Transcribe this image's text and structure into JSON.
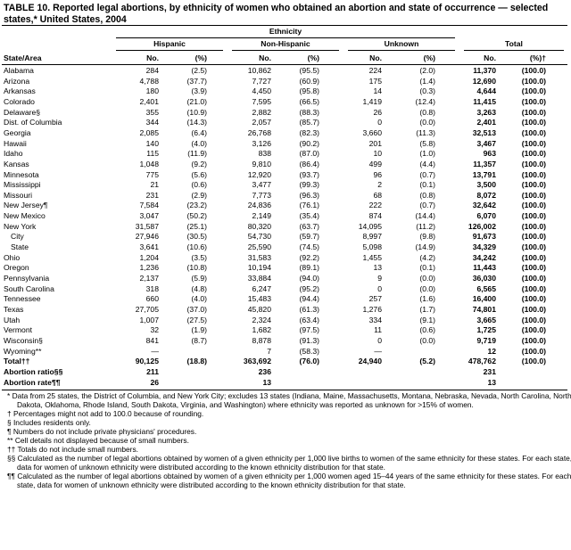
{
  "title": "TABLE 10. Reported legal abortions, by ethnicity of women who obtained an abortion and state of occurrence — selected states,* United States, 2004",
  "table": {
    "group_header": "Ethnicity",
    "column_groups": [
      "Hispanic",
      "Non-Hispanic",
      "Unknown",
      "Total"
    ],
    "columns": [
      "State/Area",
      "No.",
      "(%)",
      "No.",
      "(%)",
      "No.",
      "(%)",
      "No.",
      "(%)†"
    ],
    "rows": [
      [
        "Alabama",
        "284",
        "(2.5)",
        "10,862",
        "(95.5)",
        "224",
        "(2.0)",
        "11,370",
        "(100.0)"
      ],
      [
        "Arizona",
        "4,788",
        "(37.7)",
        "7,727",
        "(60.9)",
        "175",
        "(1.4)",
        "12,690",
        "(100.0)"
      ],
      [
        "Arkansas",
        "180",
        "(3.9)",
        "4,450",
        "(95.8)",
        "14",
        "(0.3)",
        "4,644",
        "(100.0)"
      ],
      [
        "Colorado",
        "2,401",
        "(21.0)",
        "7,595",
        "(66.5)",
        "1,419",
        "(12.4)",
        "11,415",
        "(100.0)"
      ],
      [
        "Delaware§",
        "355",
        "(10.9)",
        "2,882",
        "(88.3)",
        "26",
        "(0.8)",
        "3,263",
        "(100.0)"
      ],
      [
        "Dist. of Columbia",
        "344",
        "(14.3)",
        "2,057",
        "(85.7)",
        "0",
        "(0.0)",
        "2,401",
        "(100.0)"
      ],
      [
        "Georgia",
        "2,085",
        "(6.4)",
        "26,768",
        "(82.3)",
        "3,660",
        "(11.3)",
        "32,513",
        "(100.0)"
      ],
      [
        "Hawaii",
        "140",
        "(4.0)",
        "3,126",
        "(90.2)",
        "201",
        "(5.8)",
        "3,467",
        "(100.0)"
      ],
      [
        "Idaho",
        "115",
        "(11.9)",
        "838",
        "(87.0)",
        "10",
        "(1.0)",
        "963",
        "(100.0)"
      ],
      [
        "Kansas",
        "1,048",
        "(9.2)",
        "9,810",
        "(86.4)",
        "499",
        "(4.4)",
        "11,357",
        "(100.0)"
      ],
      [
        "Minnesota",
        "775",
        "(5.6)",
        "12,920",
        "(93.7)",
        "96",
        "(0.7)",
        "13,791",
        "(100.0)"
      ],
      [
        "Mississippi",
        "21",
        "(0.6)",
        "3,477",
        "(99.3)",
        "2",
        "(0.1)",
        "3,500",
        "(100.0)"
      ],
      [
        "Missouri",
        "231",
        "(2.9)",
        "7,773",
        "(96.3)",
        "68",
        "(0.8)",
        "8,072",
        "(100.0)"
      ],
      [
        "New Jersey¶",
        "7,584",
        "(23.2)",
        "24,836",
        "(76.1)",
        "222",
        "(0.7)",
        "32,642",
        "(100.0)"
      ],
      [
        "New Mexico",
        "3,047",
        "(50.2)",
        "2,149",
        "(35.4)",
        "874",
        "(14.4)",
        "6,070",
        "(100.0)"
      ],
      {
        "cells": [
          "New York",
          "31,587",
          "(25.1)",
          "80,320",
          "(63.7)",
          "14,095",
          "(11.2)",
          "126,002",
          "(100.0)"
        ],
        "subrows": [
          [
            "City",
            "27,946",
            "(30.5)",
            "54,730",
            "(59.7)",
            "8,997",
            "(9.8)",
            "91,673",
            "(100.0)"
          ],
          [
            "State",
            "3,641",
            "(10.6)",
            "25,590",
            "(74.5)",
            "5,098",
            "(14.9)",
            "34,329",
            "(100.0)"
          ]
        ]
      },
      [
        "Ohio",
        "1,204",
        "(3.5)",
        "31,583",
        "(92.2)",
        "1,455",
        "(4.2)",
        "34,242",
        "(100.0)"
      ],
      [
        "Oregon",
        "1,236",
        "(10.8)",
        "10,194",
        "(89.1)",
        "13",
        "(0.1)",
        "11,443",
        "(100.0)"
      ],
      [
        "Pennsylvania",
        "2,137",
        "(5.9)",
        "33,884",
        "(94.0)",
        "9",
        "(0.0)",
        "36,030",
        "(100.0)"
      ],
      [
        "South Carolina",
        "318",
        "(4.8)",
        "6,247",
        "(95.2)",
        "0",
        "(0.0)",
        "6,565",
        "(100.0)"
      ],
      [
        "Tennessee",
        "660",
        "(4.0)",
        "15,483",
        "(94.4)",
        "257",
        "(1.6)",
        "16,400",
        "(100.0)"
      ],
      [
        "Texas",
        "27,705",
        "(37.0)",
        "45,820",
        "(61.3)",
        "1,276",
        "(1.7)",
        "74,801",
        "(100.0)"
      ],
      [
        "Utah",
        "1,007",
        "(27.5)",
        "2,324",
        "(63.4)",
        "334",
        "(9.1)",
        "3,665",
        "(100.0)"
      ],
      [
        "Vermont",
        "32",
        "(1.9)",
        "1,682",
        "(97.5)",
        "11",
        "(0.6)",
        "1,725",
        "(100.0)"
      ],
      [
        "Wisconsin§",
        "841",
        "(8.7)",
        "8,878",
        "(91.3)",
        "0",
        "(0.0)",
        "9,719",
        "(100.0)"
      ],
      [
        "Wyoming**",
        "—",
        null,
        "7",
        "(58.3)",
        "—",
        null,
        "12",
        "(100.0)"
      ]
    ],
    "summary_rows": [
      [
        "Total††",
        "90,125",
        "(18.8)",
        "363,692",
        "(76.0)",
        "24,940",
        "(5.2)",
        "478,762",
        "(100.0)"
      ],
      [
        "Abortion ratio§§",
        "211",
        null,
        "236",
        null,
        null,
        null,
        "231",
        null
      ],
      [
        "Abortion rate¶¶",
        "26",
        null,
        "13",
        null,
        null,
        null,
        "13",
        null
      ]
    ]
  },
  "footnotes": [
    "* Data from 25 states, the District of Columbia, and New York City; excludes 13 states (Indiana, Maine, Massachusetts, Montana, Nebraska, Nevada, North Carolina, North Dakota, Oklahoma, Rhode Island, South Dakota, Virginia, and Washington) where ethnicity was reported as unknown for >15% of women.",
    "† Percentages might not add to 100.0 because of rounding.",
    "§ Includes residents only.",
    "¶ Numbers do not include private physicians' procedures.",
    "** Cell details not displayed because of small numbers.",
    "†† Totals do not include small numbers.",
    "§§ Calculated as the number of legal abortions obtained by women of a given ethnicity per 1,000 live births to women of the same ethnicity for these states. For each state, data for women of unknown ethnicity were distributed according to the known ethnicity distribution for that state.",
    "¶¶ Calculated as the number of legal abortions obtained by women of a given ethnicity per 1,000 women aged 15–44 years of the same ethnicity for these states. For each state, data for women of unknown ethnicity were distributed according to the known ethnicity distribution for that state."
  ]
}
